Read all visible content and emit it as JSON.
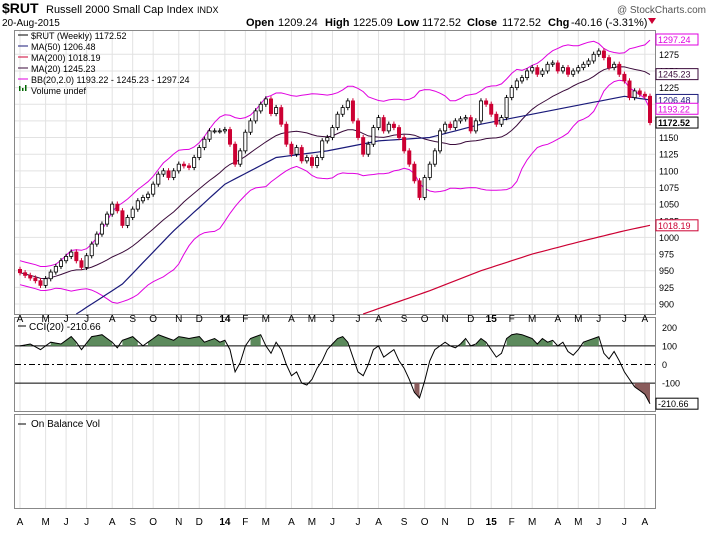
{
  "header": {
    "symbol": "$RUT",
    "name": "Russell 2000 Small Cap Index",
    "exchange": "INDX",
    "date": "20-Aug-2015",
    "watermark": "@ StockCharts.com",
    "open_label": "Open",
    "open": "1209.24",
    "high_label": "High",
    "high": "1225.09",
    "low_label": "Low",
    "low": "1172.52",
    "close_label": "Close",
    "close": "1172.52",
    "chg_label": "Chg",
    "chg": "-40.16 (-3.31%)"
  },
  "legend": [
    {
      "text": "$RUT (Weekly) 1172.52",
      "color": "#000000",
      "swatch": "line"
    },
    {
      "text": "MA(50) 1206.48",
      "color": "#1a1a7a",
      "swatch": "line"
    },
    {
      "text": "MA(200) 1018.19",
      "color": "#cc0033",
      "swatch": "line"
    },
    {
      "text": "MA(20) 1245.23",
      "color": "#3a0a3a",
      "swatch": "line"
    },
    {
      "text": "BB(20,2.0) 1193.22 - 1245.23 - 1297.24",
      "color": "#e000e0",
      "swatch": "line"
    },
    {
      "text": "Volume undef",
      "color": "#006600",
      "swatch": "bars"
    }
  ],
  "cci_panel": {
    "label": "CCI(20) -210.66",
    "value_badge": "-210.66"
  },
  "obv_panel": {
    "label": "On Balance Vol"
  },
  "price_badges": [
    {
      "text": "1297.24",
      "value": 1297.24,
      "color": "#e000e0"
    },
    {
      "text": "1245.23",
      "value": 1245.23,
      "color": "#3a0a3a"
    },
    {
      "text": "1206.48",
      "value": 1206.48,
      "color": "#1a1a7a"
    },
    {
      "text": "1193.22",
      "value": 1193.22,
      "color": "#e000e0"
    },
    {
      "text": "1172.52",
      "value": 1172.52,
      "color": "#000000"
    },
    {
      "text": "1018.19",
      "value": 1018.19,
      "color": "#cc0033"
    }
  ],
  "chart_data": {
    "type": "line",
    "interval": "weekly",
    "price_axis": {
      "range": [
        885,
        1310
      ],
      "ticks": [
        900,
        925,
        950,
        975,
        1000,
        1025,
        1050,
        1075,
        1100,
        1125,
        1150,
        1175,
        1200,
        1225,
        1250,
        1275
      ],
      "tick_labels": [
        "900",
        "925",
        "950",
        "975",
        "1000",
        "1025",
        "1050",
        "1075",
        "1100",
        "1125",
        "1150",
        "1175",
        "1200",
        "1225",
        "1250",
        "1275"
      ]
    },
    "cci_axis": {
      "range": [
        -250,
        250
      ],
      "ticks": [
        -100,
        0,
        100,
        200
      ],
      "tick_labels": [
        "-100",
        "0",
        "100",
        "200"
      ],
      "hidden_ticks": [
        -200
      ]
    },
    "months": [
      {
        "label": "A",
        "i": 0
      },
      {
        "label": "M",
        "i": 5
      },
      {
        "label": "J",
        "i": 9
      },
      {
        "label": "J",
        "i": 13
      },
      {
        "label": "A",
        "i": 18
      },
      {
        "label": "S",
        "i": 22
      },
      {
        "label": "O",
        "i": 26
      },
      {
        "label": "N",
        "i": 31
      },
      {
        "label": "D",
        "i": 35
      },
      {
        "label": "14",
        "i": 40
      },
      {
        "label": "F",
        "i": 44
      },
      {
        "label": "M",
        "i": 48
      },
      {
        "label": "A",
        "i": 53
      },
      {
        "label": "M",
        "i": 57
      },
      {
        "label": "J",
        "i": 61
      },
      {
        "label": "J",
        "i": 66
      },
      {
        "label": "A",
        "i": 70
      },
      {
        "label": "S",
        "i": 75
      },
      {
        "label": "O",
        "i": 79
      },
      {
        "label": "N",
        "i": 83
      },
      {
        "label": "D",
        "i": 88
      },
      {
        "label": "15",
        "i": 92
      },
      {
        "label": "F",
        "i": 96
      },
      {
        "label": "M",
        "i": 100
      },
      {
        "label": "A",
        "i": 105
      },
      {
        "label": "M",
        "i": 109
      },
      {
        "label": "J",
        "i": 113
      },
      {
        "label": "J",
        "i": 118
      },
      {
        "label": "A",
        "i": 122
      }
    ],
    "weeks": 124,
    "close_anchors": [
      [
        0,
        947
      ],
      [
        3,
        935
      ],
      [
        4,
        928
      ],
      [
        6,
        948
      ],
      [
        8,
        965
      ],
      [
        10,
        978
      ],
      [
        11,
        965
      ],
      [
        12,
        955
      ],
      [
        14,
        990
      ],
      [
        16,
        1020
      ],
      [
        18,
        1050
      ],
      [
        19,
        1040
      ],
      [
        20,
        1018
      ],
      [
        21,
        1030
      ],
      [
        23,
        1055
      ],
      [
        25,
        1065
      ],
      [
        27,
        1095
      ],
      [
        28,
        1100
      ],
      [
        29,
        1090
      ],
      [
        31,
        1110
      ],
      [
        33,
        1105
      ],
      [
        35,
        1135
      ],
      [
        37,
        1160
      ],
      [
        39,
        1160
      ],
      [
        40,
        1162
      ],
      [
        41,
        1140
      ],
      [
        42,
        1110
      ],
      [
        43,
        1130
      ],
      [
        44,
        1158
      ],
      [
        45,
        1175
      ],
      [
        46,
        1190
      ],
      [
        47,
        1200
      ],
      [
        48,
        1208
      ],
      [
        49,
        1186
      ],
      [
        50,
        1195
      ],
      [
        51,
        1170
      ],
      [
        52,
        1140
      ],
      [
        53,
        1125
      ],
      [
        54,
        1135
      ],
      [
        55,
        1115
      ],
      [
        56,
        1120
      ],
      [
        57,
        1108
      ],
      [
        58,
        1120
      ],
      [
        59,
        1145
      ],
      [
        60,
        1150
      ],
      [
        61,
        1165
      ],
      [
        62,
        1185
      ],
      [
        63,
        1195
      ],
      [
        64,
        1205
      ],
      [
        65,
        1175
      ],
      [
        66,
        1150
      ],
      [
        67,
        1125
      ],
      [
        68,
        1140
      ],
      [
        69,
        1165
      ],
      [
        70,
        1180
      ],
      [
        71,
        1160
      ],
      [
        72,
        1170
      ],
      [
        73,
        1165
      ],
      [
        74,
        1150
      ],
      [
        75,
        1130
      ],
      [
        76,
        1110
      ],
      [
        77,
        1085
      ],
      [
        78,
        1060
      ],
      [
        79,
        1090
      ],
      [
        80,
        1110
      ],
      [
        81,
        1130
      ],
      [
        82,
        1160
      ],
      [
        83,
        1170
      ],
      [
        84,
        1165
      ],
      [
        85,
        1175
      ],
      [
        86,
        1178
      ],
      [
        87,
        1180
      ],
      [
        88,
        1160
      ],
      [
        89,
        1175
      ],
      [
        90,
        1205
      ],
      [
        91,
        1200
      ],
      [
        92,
        1185
      ],
      [
        93,
        1170
      ],
      [
        94,
        1180
      ],
      [
        95,
        1210
      ],
      [
        96,
        1225
      ],
      [
        97,
        1235
      ],
      [
        98,
        1240
      ],
      [
        99,
        1250
      ],
      [
        100,
        1255
      ],
      [
        101,
        1245
      ],
      [
        102,
        1250
      ],
      [
        103,
        1260
      ],
      [
        104,
        1262
      ],
      [
        105,
        1250
      ],
      [
        106,
        1255
      ],
      [
        107,
        1245
      ],
      [
        108,
        1250
      ],
      [
        109,
        1255
      ],
      [
        110,
        1260
      ],
      [
        111,
        1265
      ],
      [
        112,
        1275
      ],
      [
        113,
        1280
      ],
      [
        114,
        1270
      ],
      [
        115,
        1255
      ],
      [
        116,
        1260
      ],
      [
        117,
        1245
      ],
      [
        118,
        1235
      ],
      [
        119,
        1210
      ],
      [
        120,
        1220
      ],
      [
        121,
        1215
      ],
      [
        122,
        1212
      ],
      [
        123,
        1172.52
      ]
    ],
    "cci_anchors": [
      [
        0,
        100
      ],
      [
        2,
        110
      ],
      [
        4,
        80
      ],
      [
        6,
        120
      ],
      [
        8,
        110
      ],
      [
        10,
        150
      ],
      [
        11,
        120
      ],
      [
        12,
        80
      ],
      [
        14,
        150
      ],
      [
        16,
        160
      ],
      [
        18,
        120
      ],
      [
        19,
        90
      ],
      [
        20,
        130
      ],
      [
        22,
        150
      ],
      [
        24,
        100
      ],
      [
        26,
        140
      ],
      [
        27,
        160
      ],
      [
        28,
        150
      ],
      [
        30,
        130
      ],
      [
        31,
        150
      ],
      [
        33,
        140
      ],
      [
        35,
        150
      ],
      [
        36,
        120
      ],
      [
        38,
        140
      ],
      [
        39,
        120
      ],
      [
        40,
        130
      ],
      [
        41,
        80
      ],
      [
        42,
        -40
      ],
      [
        43,
        10
      ],
      [
        44,
        100
      ],
      [
        45,
        140
      ],
      [
        46,
        150
      ],
      [
        47,
        160
      ],
      [
        48,
        100
      ],
      [
        49,
        60
      ],
      [
        50,
        120
      ],
      [
        51,
        80
      ],
      [
        52,
        0
      ],
      [
        53,
        -60
      ],
      [
        54,
        -40
      ],
      [
        55,
        -100
      ],
      [
        56,
        -110
      ],
      [
        57,
        -80
      ],
      [
        58,
        -20
      ],
      [
        59,
        20
      ],
      [
        60,
        80
      ],
      [
        61,
        110
      ],
      [
        62,
        140
      ],
      [
        63,
        150
      ],
      [
        64,
        120
      ],
      [
        65,
        40
      ],
      [
        66,
        -40
      ],
      [
        67,
        -60
      ],
      [
        68,
        0
      ],
      [
        69,
        80
      ],
      [
        70,
        100
      ],
      [
        71,
        40
      ],
      [
        72,
        60
      ],
      [
        73,
        80
      ],
      [
        74,
        20
      ],
      [
        75,
        -20
      ],
      [
        76,
        -80
      ],
      [
        77,
        -150
      ],
      [
        78,
        -180
      ],
      [
        79,
        -90
      ],
      [
        80,
        20
      ],
      [
        81,
        80
      ],
      [
        82,
        100
      ],
      [
        83,
        120
      ],
      [
        84,
        100
      ],
      [
        85,
        90
      ],
      [
        86,
        110
      ],
      [
        87,
        140
      ],
      [
        88,
        100
      ],
      [
        89,
        110
      ],
      [
        90,
        140
      ],
      [
        91,
        120
      ],
      [
        92,
        80
      ],
      [
        93,
        40
      ],
      [
        94,
        60
      ],
      [
        95,
        140
      ],
      [
        96,
        160
      ],
      [
        97,
        165
      ],
      [
        98,
        160
      ],
      [
        99,
        150
      ],
      [
        100,
        140
      ],
      [
        101,
        110
      ],
      [
        102,
        140
      ],
      [
        103,
        120
      ],
      [
        104,
        130
      ],
      [
        105,
        100
      ],
      [
        106,
        120
      ],
      [
        107,
        70
      ],
      [
        108,
        50
      ],
      [
        109,
        80
      ],
      [
        110,
        120
      ],
      [
        111,
        130
      ],
      [
        112,
        140
      ],
      [
        113,
        150
      ],
      [
        114,
        60
      ],
      [
        115,
        30
      ],
      [
        116,
        70
      ],
      [
        117,
        20
      ],
      [
        118,
        -40
      ],
      [
        119,
        -80
      ],
      [
        120,
        -120
      ],
      [
        121,
        -140
      ],
      [
        122,
        -160
      ],
      [
        123,
        -210.66
      ]
    ],
    "ma50_anchors": [
      [
        11,
        885
      ],
      [
        20,
        930
      ],
      [
        30,
        1010
      ],
      [
        40,
        1080
      ],
      [
        50,
        1120
      ],
      [
        60,
        1130
      ],
      [
        70,
        1145
      ],
      [
        80,
        1150
      ],
      [
        90,
        1170
      ],
      [
        100,
        1185
      ],
      [
        110,
        1200
      ],
      [
        118,
        1212
      ],
      [
        123,
        1206.48
      ]
    ],
    "ma200_anchors": [
      [
        67,
        885
      ],
      [
        80,
        920
      ],
      [
        90,
        950
      ],
      [
        100,
        975
      ],
      [
        110,
        995
      ],
      [
        118,
        1010
      ],
      [
        123,
        1018.19
      ]
    ]
  }
}
